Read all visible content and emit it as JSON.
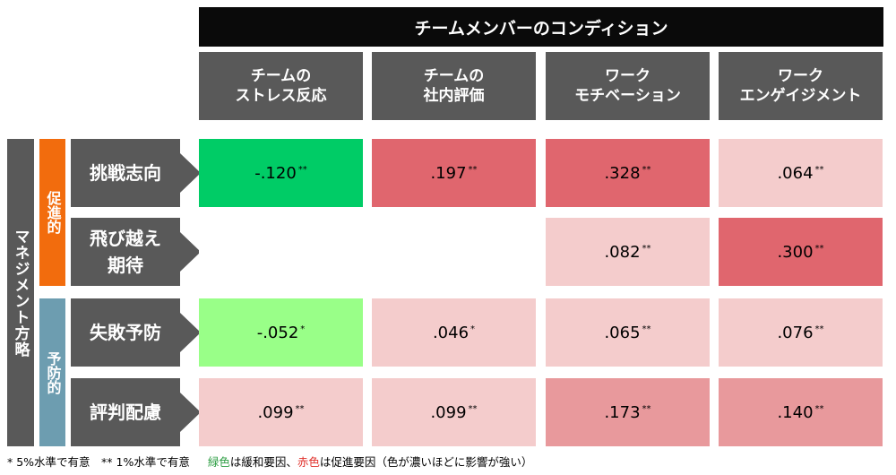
{
  "title": "チームメンバーのコンディション",
  "columns": [
    {
      "line1": "チームの",
      "line2": "ストレス反応"
    },
    {
      "line1": "チームの",
      "line2": "社内評価"
    },
    {
      "line1": "ワーク",
      "line2": "モチベーション"
    },
    {
      "line1": "ワーク",
      "line2": "エンゲイジメント"
    }
  ],
  "strategy_label": "マネジメント方略",
  "groups": [
    {
      "label": "促進的",
      "color": "#f26c0d"
    },
    {
      "label": "予防的",
      "color": "#6d9db0"
    }
  ],
  "rows": [
    {
      "line1": "挑戦志向",
      "line2": "",
      "cells": [
        {
          "value": "-.120",
          "sig": "**",
          "color": "#00cc66"
        },
        {
          "value": ".197",
          "sig": "**",
          "color": "#e0666e"
        },
        {
          "value": ".328",
          "sig": "**",
          "color": "#e0666e"
        },
        {
          "value": ".064",
          "sig": "**",
          "color": "#f4cccc"
        }
      ]
    },
    {
      "line1": "飛び越え",
      "line2": "期待",
      "cells": [
        {
          "value": "",
          "sig": "",
          "color": "#ffffff"
        },
        {
          "value": "",
          "sig": "",
          "color": "#ffffff"
        },
        {
          "value": ".082",
          "sig": "**",
          "color": "#f4cccc"
        },
        {
          "value": ".300",
          "sig": "**",
          "color": "#e0666e"
        }
      ]
    },
    {
      "line1": "失敗予防",
      "line2": "",
      "cells": [
        {
          "value": "-.052",
          "sig": "*",
          "color": "#99ff88"
        },
        {
          "value": ".046",
          "sig": "*",
          "color": "#f4cccc"
        },
        {
          "value": ".065",
          "sig": "**",
          "color": "#f4cccc"
        },
        {
          "value": ".076",
          "sig": "**",
          "color": "#f4cccc"
        }
      ]
    },
    {
      "line1": "評判配慮",
      "line2": "",
      "cells": [
        {
          "value": ".099",
          "sig": "**",
          "color": "#f4cccc"
        },
        {
          "value": ".099",
          "sig": "**",
          "color": "#f4cccc"
        },
        {
          "value": ".173",
          "sig": "**",
          "color": "#e8999c"
        },
        {
          "value": ".140",
          "sig": "**",
          "color": "#e8999c"
        }
      ]
    }
  ],
  "footer": {
    "sig_note": "* 5%水準で有意　** 1%水準で有意",
    "green_word": "緑色",
    "green_text": "は緩和要因、",
    "red_word": "赤色",
    "red_text": "は促進要因（色が濃いほどに影響が強い）",
    "green_color": "#2e9e44",
    "red_color": "#e0312c"
  }
}
